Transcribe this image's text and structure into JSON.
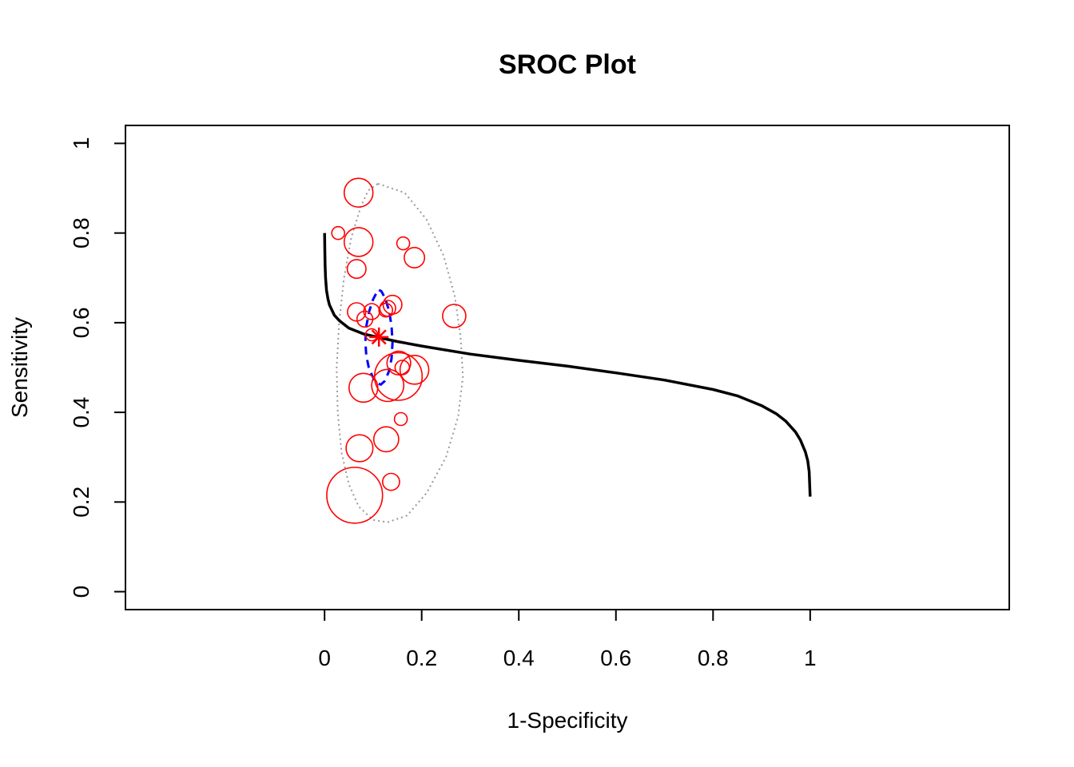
{
  "chart_data": {
    "type": "scatter",
    "title": "SROC Plot",
    "xlabel": "1-Specificity",
    "ylabel": "Sensitivity",
    "xlim": [
      -0.41,
      1.41
    ],
    "ylim": [
      -0.04,
      1.04
    ],
    "x_ticks": [
      0,
      0.2,
      0.4,
      0.6,
      0.8,
      1
    ],
    "x_tick_labels": [
      "0",
      "0.2",
      "0.4",
      "0.6",
      "0.8",
      "1"
    ],
    "y_ticks": [
      0,
      0.2,
      0.4,
      0.6,
      0.8,
      1
    ],
    "y_tick_labels": [
      "0",
      "0.2",
      "0.4",
      "0.6",
      "0.8",
      "1"
    ],
    "grid": false,
    "colors": {
      "studies": "#ff0000",
      "summary_point": "#ff0000",
      "sroc_curve": "#000000",
      "confidence_region": "#0000ff",
      "prediction_region": "#999999"
    },
    "summary_point": {
      "x": 0.112,
      "y": 0.568
    },
    "studies": [
      {
        "x": 0.07,
        "y": 0.89,
        "weight": 4
      },
      {
        "x": 0.028,
        "y": 0.8,
        "weight": 0.8
      },
      {
        "x": 0.07,
        "y": 0.78,
        "weight": 4
      },
      {
        "x": 0.162,
        "y": 0.777,
        "weight": 0.8
      },
      {
        "x": 0.185,
        "y": 0.745,
        "weight": 2
      },
      {
        "x": 0.066,
        "y": 0.72,
        "weight": 1.7
      },
      {
        "x": 0.14,
        "y": 0.64,
        "weight": 1.7
      },
      {
        "x": 0.13,
        "y": 0.632,
        "weight": 1.2
      },
      {
        "x": 0.126,
        "y": 0.628,
        "weight": 0.9
      },
      {
        "x": 0.097,
        "y": 0.625,
        "weight": 1.2
      },
      {
        "x": 0.066,
        "y": 0.624,
        "weight": 1.6
      },
      {
        "x": 0.267,
        "y": 0.615,
        "weight": 2.6
      },
      {
        "x": 0.083,
        "y": 0.608,
        "weight": 1.2
      },
      {
        "x": 0.097,
        "y": 0.573,
        "weight": 0.7
      },
      {
        "x": 0.153,
        "y": 0.51,
        "weight": 2.7
      },
      {
        "x": 0.16,
        "y": 0.5,
        "weight": 1
      },
      {
        "x": 0.185,
        "y": 0.495,
        "weight": 4
      },
      {
        "x": 0.152,
        "y": 0.48,
        "weight": 11
      },
      {
        "x": 0.13,
        "y": 0.46,
        "weight": 5
      },
      {
        "x": 0.08,
        "y": 0.455,
        "weight": 4
      },
      {
        "x": 0.157,
        "y": 0.385,
        "weight": 0.8
      },
      {
        "x": 0.127,
        "y": 0.34,
        "weight": 3
      },
      {
        "x": 0.072,
        "y": 0.32,
        "weight": 3.5
      },
      {
        "x": 0.137,
        "y": 0.245,
        "weight": 1.4
      },
      {
        "x": 0.062,
        "y": 0.215,
        "weight": 15
      }
    ],
    "sroc_curve": {
      "x": [
        0,
        0.0005,
        0.001,
        0.002,
        0.004,
        0.007,
        0.01,
        0.02,
        0.03,
        0.05,
        0.08,
        0.1,
        0.112,
        0.15,
        0.2,
        0.3,
        0.4,
        0.5,
        0.6,
        0.7,
        0.8,
        0.85,
        0.9,
        0.93,
        0.95,
        0.97,
        0.98,
        0.99,
        0.995,
        0.998,
        1
      ],
      "y": [
        0.8,
        0.76,
        0.73,
        0.7,
        0.672,
        0.653,
        0.64,
        0.617,
        0.605,
        0.588,
        0.575,
        0.57,
        0.567,
        0.558,
        0.548,
        0.53,
        0.516,
        0.503,
        0.488,
        0.472,
        0.451,
        0.437,
        0.415,
        0.397,
        0.38,
        0.356,
        0.338,
        0.312,
        0.292,
        0.268,
        0.212
      ]
    },
    "confidence_region": {
      "x": [
        0.112,
        0.117,
        0.125,
        0.133,
        0.138,
        0.14,
        0.138,
        0.132,
        0.124,
        0.116,
        0.11,
        0.104,
        0.098,
        0.091,
        0.086,
        0.084,
        0.086,
        0.092,
        0.1,
        0.108,
        0.112
      ],
      "y": [
        0.673,
        0.67,
        0.654,
        0.626,
        0.592,
        0.556,
        0.52,
        0.49,
        0.47,
        0.462,
        0.464,
        0.47,
        0.482,
        0.5,
        0.526,
        0.558,
        0.592,
        0.626,
        0.652,
        0.669,
        0.673
      ]
    },
    "prediction_region": {
      "x": [
        0.11,
        0.165,
        0.21,
        0.245,
        0.268,
        0.28,
        0.285,
        0.275,
        0.25,
        0.21,
        0.17,
        0.13,
        0.1,
        0.07,
        0.05,
        0.035,
        0.027,
        0.025,
        0.03,
        0.04,
        0.055,
        0.075,
        0.09,
        0.11
      ],
      "y": [
        0.91,
        0.89,
        0.83,
        0.75,
        0.66,
        0.57,
        0.48,
        0.39,
        0.3,
        0.22,
        0.17,
        0.155,
        0.16,
        0.19,
        0.24,
        0.31,
        0.4,
        0.5,
        0.6,
        0.7,
        0.79,
        0.86,
        0.895,
        0.91
      ]
    }
  }
}
